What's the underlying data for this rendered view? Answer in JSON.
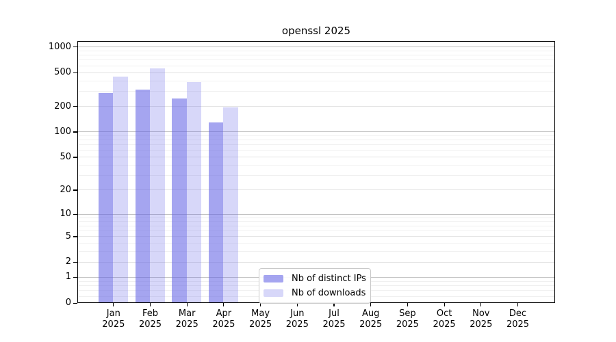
{
  "chart_data": {
    "type": "bar",
    "title": "openssl 2025",
    "categories": [
      "Jan 2025",
      "Feb 2025",
      "Mar 2025",
      "Apr 2025",
      "May 2025",
      "Jun 2025",
      "Jul 2025",
      "Aug 2025",
      "Sep 2025",
      "Oct 2025",
      "Nov 2025",
      "Dec 2025"
    ],
    "series": [
      {
        "name": "Nb of distinct IPs",
        "base_color": "#6464e6",
        "alpha": 0.58,
        "on_white_color": "#a6a6f0",
        "values": [
          280,
          310,
          245,
          127,
          null,
          null,
          null,
          null,
          null,
          null,
          null,
          null
        ]
      },
      {
        "name": "Nb of downloads",
        "base_color": "#6464e6",
        "alpha": 0.26,
        "on_white_color": "#d8d8f8",
        "values": [
          440,
          550,
          380,
          190,
          null,
          null,
          null,
          null,
          null,
          null,
          null,
          null
        ]
      }
    ],
    "yscale": "symlog-log1p",
    "y_tick_values": [
      1000,
      500,
      200,
      100,
      50,
      20,
      10,
      5,
      2,
      1,
      0
    ],
    "ylim": [
      0,
      1170
    ],
    "grid": true,
    "grid_colors": {
      "decade": "#c2c2c2",
      "labeled": "#e2e2e2",
      "minor": "#f0f0f0"
    },
    "legend_position": "lower center"
  }
}
